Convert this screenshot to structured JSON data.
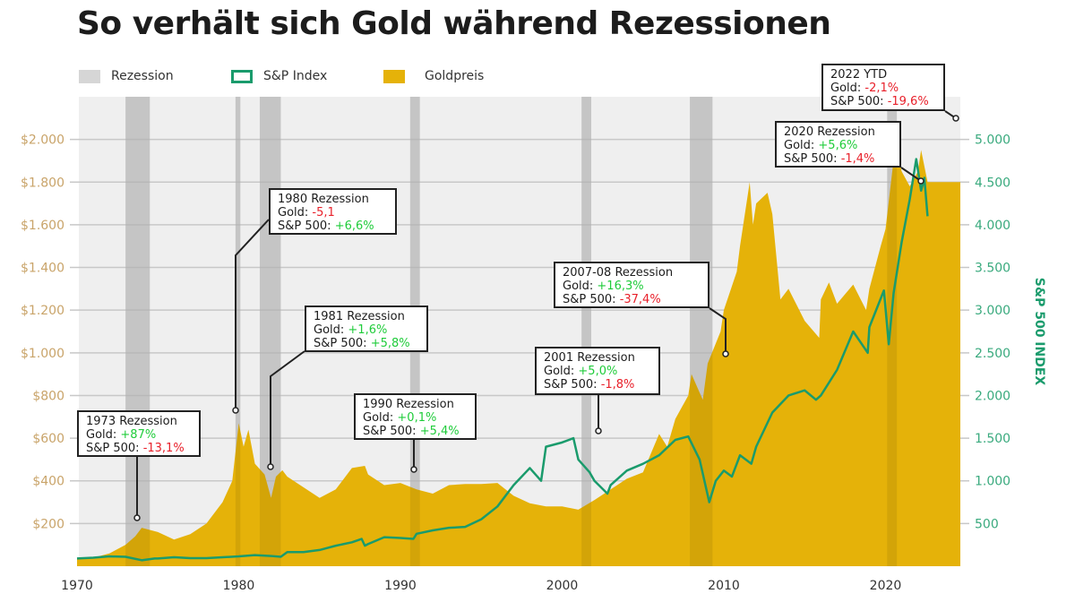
{
  "title": "So verhält sich Gold während Rezessionen",
  "legend": [
    {
      "label": "Rezession",
      "color": "#d6d6d6"
    },
    {
      "label": "S&P Index",
      "color": "#1a9b6c"
    },
    {
      "label": "Goldpreis",
      "color": "#e5b209"
    }
  ],
  "chart_data": {
    "type": "area+line",
    "title": "So verhält sich Gold während Rezessionen",
    "x_ticks": [
      "1970",
      "1980",
      "1990",
      "2000",
      "2010",
      "2020"
    ],
    "xlim": [
      1970,
      2022.6
    ],
    "y_left": {
      "label": "",
      "ylim": [
        0,
        2200
      ],
      "ticks": [
        "$200",
        "$400",
        "$600",
        "$800",
        "$1.000",
        "$1.200",
        "$1.400",
        "$1.600",
        "$1.800",
        "$2.000"
      ],
      "tick_values": [
        200,
        400,
        600,
        800,
        1000,
        1200,
        1400,
        1600,
        1800,
        2000
      ]
    },
    "y_right": {
      "label": "S&P 500 INDEX",
      "ylim": [
        0,
        5500
      ],
      "ticks": [
        "500",
        "1.000",
        "1.500",
        "2.000",
        "2.500",
        "3.000",
        "3.500",
        "4.000",
        "4.500",
        "5.000"
      ],
      "tick_values": [
        500,
        1000,
        1500,
        2000,
        2500,
        3000,
        3500,
        4000,
        4500,
        5000
      ]
    },
    "grid": true,
    "legend_placement": "top",
    "recessions": [
      [
        1973.0,
        1974.5
      ],
      [
        1979.8,
        1980.1
      ],
      [
        1981.3,
        1982.6
      ],
      [
        1990.6,
        1991.2
      ],
      [
        2001.2,
        2001.8
      ],
      [
        2007.9,
        2009.3
      ],
      [
        2020.1,
        2020.7
      ]
    ],
    "series": [
      {
        "name": "Goldpreis",
        "axis": "left",
        "color": "#e5b209",
        "type": "area",
        "x": [
          1970,
          1971,
          1972,
          1973,
          1973.6,
          1974,
          1974.5,
          1975,
          1976,
          1977,
          1978,
          1979,
          1979.6,
          1980,
          1980.3,
          1980.6,
          1981,
          1981.6,
          1982,
          1982.3,
          1982.7,
          1983,
          1984,
          1985,
          1986,
          1987,
          1987.8,
          1988,
          1989,
          1990,
          1991,
          1992,
          1993,
          1994,
          1995,
          1996,
          1997,
          1998,
          1999,
          2000,
          2001,
          2002,
          2003,
          2004,
          2005,
          2006,
          2006.5,
          2007,
          2007.8,
          2008,
          2008.7,
          2009,
          2009.8,
          2010,
          2010.8,
          2011,
          2011.6,
          2011.8,
          2012,
          2012.7,
          2013,
          2013.5,
          2014,
          2015,
          2015.9,
          2016,
          2016.5,
          2017,
          2018,
          2018.8,
          2019,
          2019.7,
          2020,
          2020.6,
          2021,
          2021.5,
          2022,
          2022.2,
          2022.6
        ],
        "y": [
          36,
          40,
          60,
          100,
          140,
          180,
          170,
          160,
          125,
          150,
          200,
          300,
          400,
          670,
          560,
          640,
          480,
          430,
          320,
          420,
          450,
          420,
          370,
          320,
          360,
          460,
          470,
          430,
          380,
          390,
          360,
          340,
          380,
          385,
          385,
          390,
          330,
          295,
          280,
          280,
          265,
          310,
          360,
          410,
          440,
          620,
          560,
          690,
          800,
          900,
          780,
          950,
          1100,
          1200,
          1380,
          1500,
          1800,
          1600,
          1700,
          1750,
          1650,
          1250,
          1300,
          1150,
          1070,
          1250,
          1330,
          1230,
          1320,
          1200,
          1300,
          1500,
          1580,
          1970,
          1850,
          1780,
          1850,
          1950,
          1800
        ]
      },
      {
        "name": "S&P Index",
        "axis": "right",
        "color": "#1a9b6c",
        "type": "line",
        "x": [
          1970,
          1971,
          1972,
          1973,
          1974,
          1974.8,
          1975,
          1976,
          1977,
          1978,
          1979,
          1980,
          1981,
          1982,
          1982.6,
          1983,
          1984,
          1985,
          1986,
          1987,
          1987.6,
          1987.8,
          1988,
          1989,
          1990,
          1990.8,
          1991,
          1992,
          1993,
          1994,
          1995,
          1996,
          1997,
          1998,
          1998.7,
          1999,
          2000,
          2000.7,
          2001,
          2001.7,
          2002,
          2002.8,
          2003,
          2004,
          2005,
          2006,
          2007,
          2007.8,
          2008.5,
          2009.1,
          2009.5,
          2010,
          2010.5,
          2011,
          2011.7,
          2012,
          2013,
          2014,
          2015,
          2015.7,
          2016,
          2017,
          2018,
          2018.9,
          2019,
          2019.9,
          2020.2,
          2020.5,
          2021,
          2021.5,
          2021.9,
          2022.2,
          2022.4,
          2022.6
        ],
        "y": [
          90,
          100,
          115,
          110,
          70,
          90,
          90,
          105,
          95,
          95,
          105,
          115,
          130,
          120,
          110,
          165,
          165,
          190,
          240,
          280,
          320,
          240,
          260,
          340,
          330,
          320,
          380,
          420,
          450,
          460,
          550,
          700,
          950,
          1150,
          1000,
          1400,
          1450,
          1500,
          1250,
          1100,
          1000,
          850,
          950,
          1120,
          1200,
          1300,
          1480,
          1520,
          1250,
          750,
          1000,
          1120,
          1050,
          1300,
          1200,
          1400,
          1800,
          2000,
          2060,
          1950,
          2000,
          2300,
          2750,
          2500,
          2800,
          3230,
          2600,
          3200,
          3800,
          4300,
          4770,
          4400,
          4550,
          4100
        ]
      }
    ]
  },
  "annotations": [
    {
      "title": "1973 Rezession",
      "gold_label": "Gold: ",
      "gold": "+87%",
      "sp_label": "S&P 500: ",
      "sp": "-13,1%"
    },
    {
      "title": "1980 Rezession",
      "gold_label": "Gold: ",
      "gold": "-5,1",
      "sp_label": "S&P 500: ",
      "sp": "+6,6%"
    },
    {
      "title": "1981 Rezession",
      "gold_label": "Gold: ",
      "gold": "+1,6%",
      "sp_label": "S&P 500: ",
      "sp": "+5,8%"
    },
    {
      "title": "1990 Rezession",
      "gold_label": "Gold: ",
      "gold": "+0,1%",
      "sp_label": "S&P 500: ",
      "sp": "+5,4%"
    },
    {
      "title": "2001 Rezession",
      "gold_label": "Gold: ",
      "gold": "+5,0%",
      "sp_label": "S&P 500: ",
      "sp": "-1,8%"
    },
    {
      "title": "2007-08 Rezession",
      "gold_label": "Gold: ",
      "gold": "+16,3%",
      "sp_label": "S&P 500: ",
      "sp": "-37,4%"
    },
    {
      "title": "2020 Rezession",
      "gold_label": "Gold: ",
      "gold": "+5,6%",
      "sp_label": "S&P 500: ",
      "sp": "-1,4%"
    },
    {
      "title": "2022 YTD",
      "gold_label": "Gold: ",
      "gold": "-2,1%",
      "sp_label": "S&P 500: ",
      "sp": "-19,6%"
    }
  ]
}
